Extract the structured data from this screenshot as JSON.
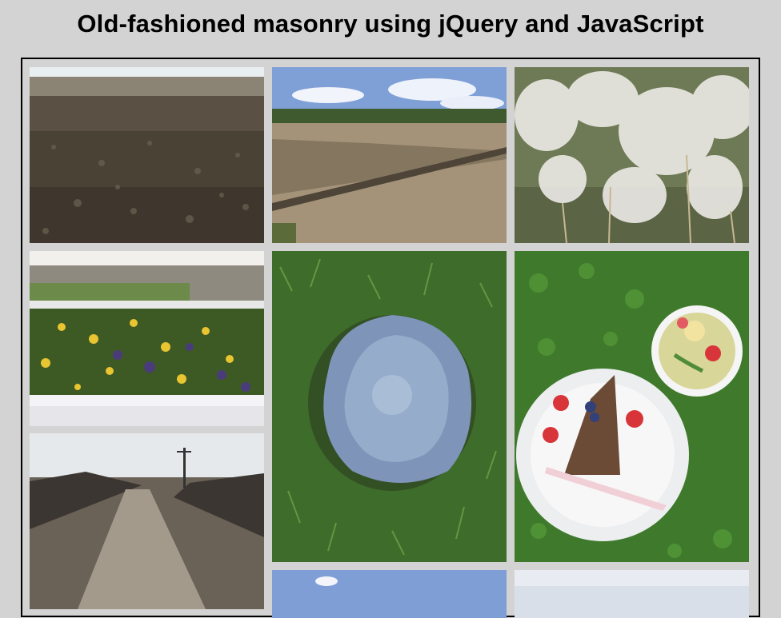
{
  "page": {
    "title": "Old-fashioned masonry using jQuery and JavaScript"
  },
  "gallery": {
    "images": [
      {
        "subject": "plowed-field",
        "column": 1
      },
      {
        "subject": "field-with-shadow",
        "column": 2
      },
      {
        "subject": "pampas-grass",
        "column": 3
      },
      {
        "subject": "pansy-greenhouse",
        "column": 1
      },
      {
        "subject": "frosted-grass-patch",
        "column": 2
      },
      {
        "subject": "cake-and-lemonade-on-grass",
        "column": 3
      },
      {
        "subject": "dirt-road-with-power-pole",
        "column": 1
      },
      {
        "subject": "sky-landscape",
        "column": 2
      },
      {
        "subject": "pale-sky-landscape",
        "column": 3
      }
    ]
  },
  "colors": {
    "background": "#d3d3d3",
    "frame_border": "#000000"
  }
}
